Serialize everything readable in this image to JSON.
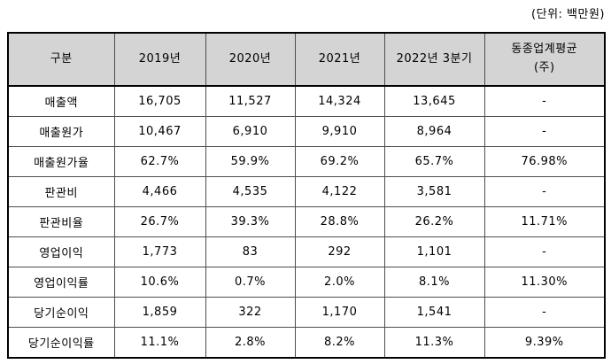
{
  "unit_note": "(단위: 백만원)",
  "table": {
    "columns": [
      "구분",
      "2019년",
      "2020년",
      "2021년",
      "2022년 3분기",
      "동종업계평균\n(주)"
    ],
    "rows": [
      {
        "label": "매출액",
        "values": [
          "16,705",
          "11,527",
          "14,324",
          "13,645",
          "-"
        ]
      },
      {
        "label": "매출원가",
        "values": [
          "10,467",
          "6,910",
          "9,910",
          "8,964",
          "-"
        ]
      },
      {
        "label": "매출원가율",
        "values": [
          "62.7%",
          "59.9%",
          "69.2%",
          "65.7%",
          "76.98%"
        ]
      },
      {
        "label": "판관비",
        "values": [
          "4,466",
          "4,535",
          "4,122",
          "3,581",
          "-"
        ]
      },
      {
        "label": "판관비율",
        "values": [
          "26.7%",
          "39.3%",
          "28.8%",
          "26.2%",
          "11.71%"
        ]
      },
      {
        "label": "영업이익",
        "values": [
          "1,773",
          "83",
          "292",
          "1,101",
          "-"
        ]
      },
      {
        "label": "영업이익률",
        "values": [
          "10.6%",
          "0.7%",
          "2.0%",
          "8.1%",
          "11.30%"
        ]
      },
      {
        "label": "당기순이익",
        "values": [
          "1,859",
          "322",
          "1,170",
          "1,541",
          "-"
        ]
      },
      {
        "label": "당기순이익률",
        "values": [
          "11.1%",
          "2.8%",
          "8.2%",
          "11.3%",
          "9.39%"
        ]
      }
    ]
  }
}
